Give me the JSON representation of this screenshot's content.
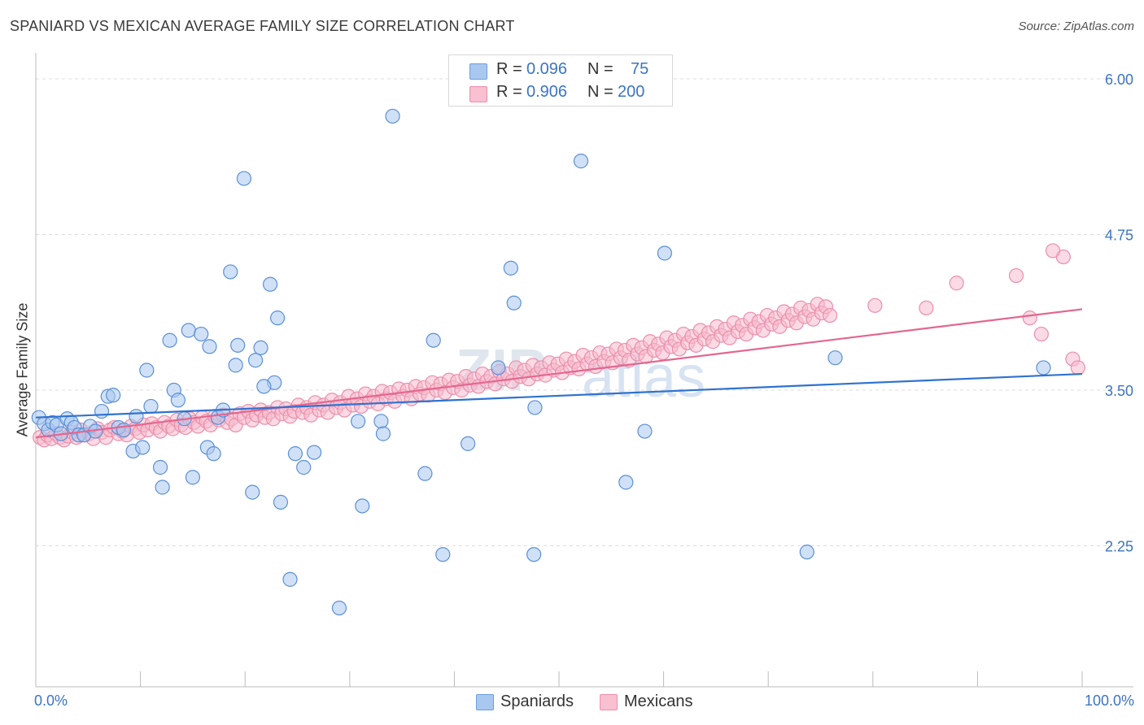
{
  "header": {
    "title": "SPANIARD VS MEXICAN AVERAGE FAMILY SIZE CORRELATION CHART",
    "source": "Source: ZipAtlas.com"
  },
  "legend_top": {
    "rows": [
      {
        "r_label": "R =",
        "r_value": "0.096",
        "n_label": "N =",
        "n_value": "75",
        "color": "#a9c8f0",
        "border": "#6b9ee0"
      },
      {
        "r_label": "R =",
        "r_value": "0.906",
        "n_label": "N =",
        "n_value": "200",
        "color": "#f8c0d0",
        "border": "#ee8fab"
      }
    ]
  },
  "legend_bottom": {
    "items": [
      {
        "label": "Spaniards",
        "color": "#a9c8f0",
        "border": "#6b9ee0"
      },
      {
        "label": "Mexicans",
        "color": "#f8c0d0",
        "border": "#ee8fab"
      }
    ]
  },
  "axis": {
    "x_min_label": "0.0%",
    "x_max_label": "100.0%",
    "y_label": "Average Family Size"
  },
  "watermark": {
    "zip": "ZIP",
    "atlas": "atlas"
  },
  "colors": {
    "spaniards_fill": "#a9c8f0",
    "spaniards_stroke": "#5b8fd8",
    "spaniards_line": "#2f72d0",
    "mexicans_fill": "#f6bccd",
    "mexicans_stroke": "#ec8eab",
    "mexicans_line": "#e4668f",
    "tick_text": "#3b75c4",
    "grid": "#dddddd"
  },
  "chart_data": {
    "type": "scatter",
    "title": "SPANIARD VS MEXICAN AVERAGE FAMILY SIZE CORRELATION CHART",
    "xlabel": "",
    "ylabel": "Average Family Size",
    "xlim": [
      0,
      100
    ],
    "ylim": [
      1.0,
      6.1
    ],
    "y_ticks": [
      2.25,
      3.5,
      4.75,
      6.0
    ],
    "y_tick_labels": [
      "2.25",
      "3.50",
      "4.75",
      "6.00"
    ],
    "x_tick_labels": [
      "0.0%",
      "100.0%"
    ],
    "grid": true,
    "legend_placement": "top-center",
    "series": [
      {
        "name": "Spaniards",
        "r": 0.096,
        "n": 75,
        "trend": {
          "x": [
            0,
            100
          ],
          "y": [
            3.28,
            3.63
          ]
        },
        "points": [
          [
            0.3,
            3.28
          ],
          [
            0.8,
            3.23
          ],
          [
            1.2,
            3.18
          ],
          [
            1.6,
            3.24
          ],
          [
            2.0,
            3.22
          ],
          [
            2.4,
            3.15
          ],
          [
            3.0,
            3.27
          ],
          [
            3.4,
            3.24
          ],
          [
            3.7,
            3.2
          ],
          [
            4.1,
            3.14
          ],
          [
            4.6,
            3.14
          ],
          [
            5.2,
            3.21
          ],
          [
            5.7,
            3.17
          ],
          [
            6.3,
            3.33
          ],
          [
            6.9,
            3.45
          ],
          [
            7.4,
            3.46
          ],
          [
            7.9,
            3.2
          ],
          [
            8.4,
            3.18
          ],
          [
            9.3,
            3.01
          ],
          [
            9.6,
            3.29
          ],
          [
            10.2,
            3.04
          ],
          [
            10.6,
            3.66
          ],
          [
            11.0,
            3.37
          ],
          [
            11.9,
            2.88
          ],
          [
            12.1,
            2.72
          ],
          [
            12.8,
            3.9
          ],
          [
            13.2,
            3.5
          ],
          [
            13.6,
            3.42
          ],
          [
            14.2,
            3.27
          ],
          [
            14.6,
            3.98
          ],
          [
            15.0,
            2.8
          ],
          [
            15.8,
            3.95
          ],
          [
            16.4,
            3.04
          ],
          [
            16.6,
            3.85
          ],
          [
            17.0,
            2.99
          ],
          [
            17.4,
            3.28
          ],
          [
            17.9,
            3.34
          ],
          [
            18.6,
            4.45
          ],
          [
            19.1,
            3.7
          ],
          [
            19.3,
            3.86
          ],
          [
            19.9,
            5.2
          ],
          [
            20.7,
            2.68
          ],
          [
            21.0,
            3.74
          ],
          [
            21.5,
            3.84
          ],
          [
            22.4,
            4.35
          ],
          [
            22.8,
            3.56
          ],
          [
            23.1,
            4.08
          ],
          [
            23.4,
            2.6
          ],
          [
            24.3,
            1.98
          ],
          [
            24.8,
            2.99
          ],
          [
            25.6,
            2.88
          ],
          [
            26.6,
            3.0
          ],
          [
            29.0,
            1.75
          ],
          [
            30.8,
            3.25
          ],
          [
            31.2,
            2.57
          ],
          [
            33.0,
            3.25
          ],
          [
            33.2,
            3.15
          ],
          [
            34.1,
            5.7
          ],
          [
            37.2,
            2.83
          ],
          [
            38.0,
            3.9
          ],
          [
            38.9,
            2.18
          ],
          [
            41.3,
            3.07
          ],
          [
            45.4,
            4.48
          ],
          [
            45.7,
            4.2
          ],
          [
            47.7,
            3.36
          ],
          [
            47.6,
            2.18
          ],
          [
            52.1,
            5.34
          ],
          [
            56.4,
            2.76
          ],
          [
            58.2,
            3.17
          ],
          [
            60.1,
            4.6
          ],
          [
            73.7,
            2.2
          ],
          [
            76.4,
            3.76
          ],
          [
            96.3,
            3.68
          ],
          [
            44.2,
            3.68
          ],
          [
            21.8,
            3.53
          ]
        ]
      },
      {
        "name": "Mexicans",
        "r": 0.906,
        "n": 200,
        "trend": {
          "x": [
            0,
            100
          ],
          "y": [
            3.12,
            4.15
          ]
        },
        "points": [
          [
            0.4,
            3.12
          ],
          [
            0.8,
            3.1
          ],
          [
            1.1,
            3.14
          ],
          [
            1.5,
            3.11
          ],
          [
            1.9,
            3.15
          ],
          [
            2.3,
            3.12
          ],
          [
            2.7,
            3.1
          ],
          [
            3.1,
            3.13
          ],
          [
            3.5,
            3.16
          ],
          [
            3.9,
            3.12
          ],
          [
            4.3,
            3.18
          ],
          [
            4.7,
            3.14
          ],
          [
            5.1,
            3.15
          ],
          [
            5.5,
            3.11
          ],
          [
            5.9,
            3.19
          ],
          [
            6.3,
            3.16
          ],
          [
            6.7,
            3.12
          ],
          [
            7.1,
            3.18
          ],
          [
            7.5,
            3.2
          ],
          [
            7.9,
            3.15
          ],
          [
            8.3,
            3.17
          ],
          [
            8.7,
            3.14
          ],
          [
            9.1,
            3.21
          ],
          [
            9.5,
            3.19
          ],
          [
            9.9,
            3.16
          ],
          [
            10.3,
            3.22
          ],
          [
            10.7,
            3.18
          ],
          [
            11.1,
            3.23
          ],
          [
            11.5,
            3.2
          ],
          [
            11.9,
            3.17
          ],
          [
            12.3,
            3.24
          ],
          [
            12.7,
            3.21
          ],
          [
            13.1,
            3.19
          ],
          [
            13.5,
            3.26
          ],
          [
            13.9,
            3.22
          ],
          [
            14.3,
            3.2
          ],
          [
            14.7,
            3.27
          ],
          [
            15.1,
            3.24
          ],
          [
            15.5,
            3.21
          ],
          [
            15.9,
            3.28
          ],
          [
            16.3,
            3.25
          ],
          [
            16.7,
            3.22
          ],
          [
            17.1,
            3.29
          ],
          [
            17.5,
            3.26
          ],
          [
            17.9,
            3.3
          ],
          [
            18.3,
            3.24
          ],
          [
            18.7,
            3.27
          ],
          [
            19.1,
            3.22
          ],
          [
            19.5,
            3.31
          ],
          [
            19.9,
            3.28
          ],
          [
            20.3,
            3.33
          ],
          [
            20.7,
            3.26
          ],
          [
            21.1,
            3.3
          ],
          [
            21.5,
            3.34
          ],
          [
            21.9,
            3.28
          ],
          [
            22.3,
            3.32
          ],
          [
            22.7,
            3.27
          ],
          [
            23.1,
            3.36
          ],
          [
            23.5,
            3.31
          ],
          [
            23.9,
            3.35
          ],
          [
            24.3,
            3.29
          ],
          [
            24.7,
            3.33
          ],
          [
            25.1,
            3.38
          ],
          [
            25.5,
            3.32
          ],
          [
            25.9,
            3.36
          ],
          [
            26.3,
            3.3
          ],
          [
            26.7,
            3.4
          ],
          [
            27.1,
            3.34
          ],
          [
            27.5,
            3.38
          ],
          [
            27.9,
            3.32
          ],
          [
            28.3,
            3.42
          ],
          [
            28.7,
            3.36
          ],
          [
            29.1,
            3.4
          ],
          [
            29.5,
            3.34
          ],
          [
            29.9,
            3.45
          ],
          [
            30.3,
            3.38
          ],
          [
            30.7,
            3.43
          ],
          [
            31.1,
            3.37
          ],
          [
            31.5,
            3.47
          ],
          [
            31.9,
            3.41
          ],
          [
            32.3,
            3.45
          ],
          [
            32.7,
            3.39
          ],
          [
            33.1,
            3.49
          ],
          [
            33.5,
            3.43
          ],
          [
            33.9,
            3.48
          ],
          [
            34.3,
            3.41
          ],
          [
            34.7,
            3.51
          ],
          [
            35.1,
            3.45
          ],
          [
            35.5,
            3.5
          ],
          [
            35.9,
            3.43
          ],
          [
            36.3,
            3.53
          ],
          [
            36.7,
            3.47
          ],
          [
            37.1,
            3.52
          ],
          [
            37.5,
            3.46
          ],
          [
            37.9,
            3.56
          ],
          [
            38.3,
            3.5
          ],
          [
            38.7,
            3.55
          ],
          [
            39.1,
            3.48
          ],
          [
            39.5,
            3.58
          ],
          [
            39.9,
            3.52
          ],
          [
            40.3,
            3.57
          ],
          [
            40.7,
            3.5
          ],
          [
            41.1,
            3.61
          ],
          [
            41.5,
            3.54
          ],
          [
            41.9,
            3.59
          ],
          [
            42.3,
            3.53
          ],
          [
            42.7,
            3.63
          ],
          [
            43.1,
            3.57
          ],
          [
            43.5,
            3.61
          ],
          [
            43.9,
            3.55
          ],
          [
            44.3,
            3.65
          ],
          [
            44.7,
            3.59
          ],
          [
            45.1,
            3.63
          ],
          [
            45.5,
            3.57
          ],
          [
            45.9,
            3.68
          ],
          [
            46.3,
            3.61
          ],
          [
            46.7,
            3.66
          ],
          [
            47.1,
            3.59
          ],
          [
            47.5,
            3.7
          ],
          [
            47.9,
            3.63
          ],
          [
            48.3,
            3.68
          ],
          [
            48.7,
            3.62
          ],
          [
            49.1,
            3.72
          ],
          [
            49.5,
            3.66
          ],
          [
            49.9,
            3.71
          ],
          [
            50.3,
            3.64
          ],
          [
            50.7,
            3.75
          ],
          [
            51.1,
            3.68
          ],
          [
            51.5,
            3.73
          ],
          [
            51.9,
            3.67
          ],
          [
            52.3,
            3.78
          ],
          [
            52.7,
            3.71
          ],
          [
            53.1,
            3.76
          ],
          [
            53.5,
            3.69
          ],
          [
            53.9,
            3.8
          ],
          [
            54.3,
            3.73
          ],
          [
            54.7,
            3.79
          ],
          [
            55.1,
            3.72
          ],
          [
            55.5,
            3.83
          ],
          [
            55.9,
            3.76
          ],
          [
            56.3,
            3.82
          ],
          [
            56.7,
            3.74
          ],
          [
            57.1,
            3.86
          ],
          [
            57.5,
            3.79
          ],
          [
            57.9,
            3.84
          ],
          [
            58.3,
            3.77
          ],
          [
            58.7,
            3.89
          ],
          [
            59.1,
            3.82
          ],
          [
            59.5,
            3.87
          ],
          [
            59.9,
            3.8
          ],
          [
            60.3,
            3.92
          ],
          [
            60.7,
            3.85
          ],
          [
            61.1,
            3.9
          ],
          [
            61.5,
            3.83
          ],
          [
            61.9,
            3.95
          ],
          [
            62.3,
            3.88
          ],
          [
            62.7,
            3.93
          ],
          [
            63.1,
            3.86
          ],
          [
            63.5,
            3.98
          ],
          [
            63.9,
            3.91
          ],
          [
            64.3,
            3.96
          ],
          [
            64.7,
            3.89
          ],
          [
            65.1,
            4.01
          ],
          [
            65.5,
            3.94
          ],
          [
            65.9,
            3.99
          ],
          [
            66.3,
            3.92
          ],
          [
            66.7,
            4.04
          ],
          [
            67.1,
            3.97
          ],
          [
            67.5,
            4.02
          ],
          [
            67.9,
            3.95
          ],
          [
            68.3,
            4.07
          ],
          [
            68.7,
            4.0
          ],
          [
            69.1,
            4.05
          ],
          [
            69.5,
            3.98
          ],
          [
            69.9,
            4.1
          ],
          [
            70.3,
            4.03
          ],
          [
            70.7,
            4.08
          ],
          [
            71.1,
            4.01
          ],
          [
            71.5,
            4.13
          ],
          [
            71.9,
            4.06
          ],
          [
            72.3,
            4.11
          ],
          [
            72.7,
            4.04
          ],
          [
            73.1,
            4.16
          ],
          [
            73.5,
            4.09
          ],
          [
            73.9,
            4.14
          ],
          [
            74.3,
            4.07
          ],
          [
            74.7,
            4.19
          ],
          [
            75.1,
            4.12
          ],
          [
            75.5,
            4.17
          ],
          [
            75.9,
            4.1
          ],
          [
            80.2,
            4.18
          ],
          [
            85.1,
            4.16
          ],
          [
            88.0,
            4.36
          ],
          [
            93.7,
            4.42
          ],
          [
            95.0,
            4.08
          ],
          [
            96.1,
            3.95
          ],
          [
            98.2,
            4.57
          ],
          [
            99.1,
            3.75
          ],
          [
            99.6,
            3.68
          ],
          [
            97.2,
            4.62
          ]
        ]
      }
    ]
  }
}
